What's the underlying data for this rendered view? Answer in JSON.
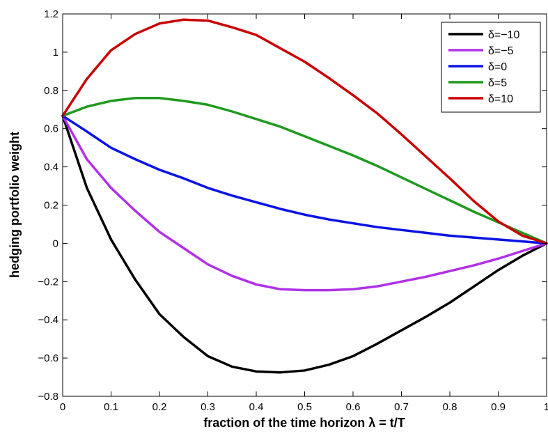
{
  "chart_data": {
    "type": "line",
    "xlabel": "fraction of the time horizon  λ = t/T",
    "ylabel": "hedging portfolio weight",
    "xlim": [
      0,
      1
    ],
    "ylim": [
      -0.8,
      1.2
    ],
    "x_ticks": [
      0,
      0.1,
      0.2,
      0.3,
      0.4,
      0.5,
      0.6,
      0.7,
      0.8,
      0.9,
      1
    ],
    "x_tick_labels": [
      "0",
      "0.1",
      "0.2",
      "0.3",
      "0.4",
      "0.5",
      "0.6",
      "0.7",
      "0.8",
      "0.9",
      "1"
    ],
    "y_ticks": [
      -0.8,
      -0.6,
      -0.4,
      -0.2,
      0,
      0.2,
      0.4,
      0.6,
      0.8,
      1,
      1.2
    ],
    "y_tick_labels": [
      "−0.8",
      "−0.6",
      "−0.4",
      "−0.2",
      "0",
      "0.2",
      "0.4",
      "0.6",
      "0.8",
      "1",
      "1.2"
    ],
    "grid": false,
    "legend_position": "top-right",
    "x": [
      0,
      0.05,
      0.1,
      0.15,
      0.2,
      0.25,
      0.3,
      0.35,
      0.4,
      0.45,
      0.5,
      0.55,
      0.6,
      0.65,
      0.7,
      0.75,
      0.8,
      0.85,
      0.9,
      0.95,
      1.0
    ],
    "series": [
      {
        "name": "δ=−10",
        "color": "#000000",
        "values": [
          0.667,
          0.29,
          0.02,
          -0.19,
          -0.37,
          -0.49,
          -0.59,
          -0.645,
          -0.67,
          -0.675,
          -0.665,
          -0.635,
          -0.59,
          -0.525,
          -0.455,
          -0.385,
          -0.31,
          -0.225,
          -0.14,
          -0.065,
          0.0
        ]
      },
      {
        "name": "δ=−5",
        "color": "#b030e8",
        "values": [
          0.667,
          0.44,
          0.29,
          0.17,
          0.06,
          -0.025,
          -0.11,
          -0.17,
          -0.215,
          -0.24,
          -0.245,
          -0.245,
          -0.24,
          -0.225,
          -0.2,
          -0.175,
          -0.145,
          -0.115,
          -0.08,
          -0.04,
          0.0
        ]
      },
      {
        "name": "δ=0",
        "color": "#0a14e6",
        "values": [
          0.667,
          0.585,
          0.5,
          0.44,
          0.385,
          0.34,
          0.29,
          0.25,
          0.215,
          0.18,
          0.15,
          0.125,
          0.105,
          0.085,
          0.07,
          0.055,
          0.04,
          0.03,
          0.02,
          0.01,
          0.0
        ]
      },
      {
        "name": "δ=5",
        "color": "#1f9a1f",
        "values": [
          0.667,
          0.715,
          0.745,
          0.76,
          0.76,
          0.745,
          0.725,
          0.69,
          0.65,
          0.61,
          0.56,
          0.51,
          0.46,
          0.405,
          0.345,
          0.285,
          0.225,
          0.165,
          0.11,
          0.055,
          0.0
        ]
      },
      {
        "name": "δ=10",
        "color": "#c80000",
        "values": [
          0.667,
          0.86,
          1.01,
          1.095,
          1.15,
          1.17,
          1.165,
          1.13,
          1.09,
          1.02,
          0.95,
          0.865,
          0.775,
          0.68,
          0.57,
          0.455,
          0.34,
          0.22,
          0.115,
          0.04,
          0.0
        ]
      }
    ]
  }
}
